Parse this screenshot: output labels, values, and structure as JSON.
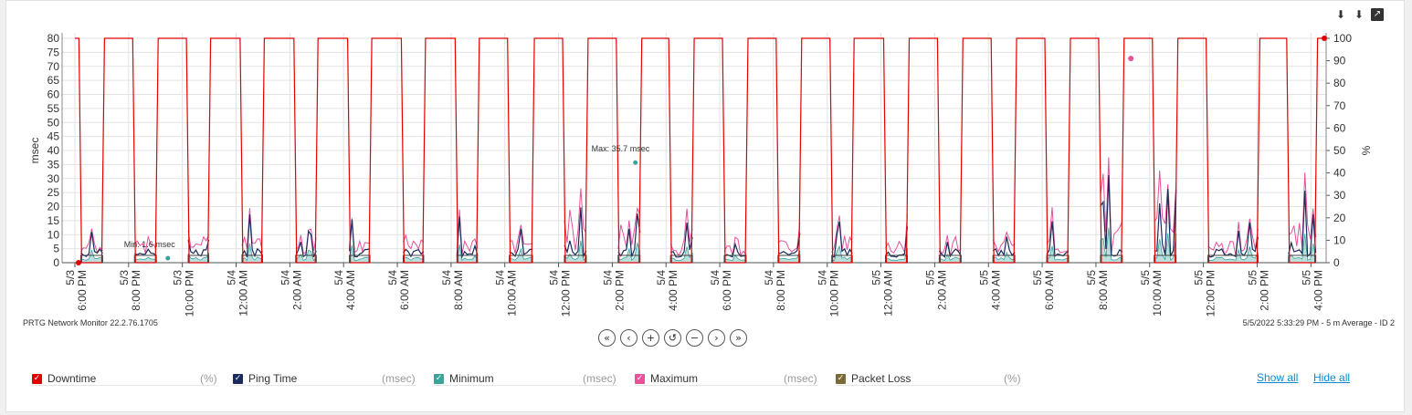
{
  "toolbar": {
    "icons": [
      "download-icon",
      "download-alt-icon",
      "open-external-icon"
    ],
    "icon_glyphs": [
      "⬇",
      "⬇",
      "↗"
    ]
  },
  "chart_data": {
    "type": "line",
    "ylabel_left": "msec",
    "ylabel_right": "%",
    "ylim_left": [
      0,
      80
    ],
    "ylim_right": [
      0,
      100
    ],
    "yticks_left": [
      0,
      5,
      10,
      15,
      20,
      25,
      30,
      35,
      40,
      45,
      50,
      55,
      60,
      65,
      70,
      75,
      80
    ],
    "yticks_right": [
      0,
      10,
      20,
      30,
      40,
      50,
      60,
      70,
      80,
      90,
      100
    ],
    "xticks": [
      [
        "5/3",
        "6:00 PM"
      ],
      [
        "5/3",
        "8:00 PM"
      ],
      [
        "5/3",
        "10:00 PM"
      ],
      [
        "5/4",
        "12:00 AM"
      ],
      [
        "5/4",
        "2:00 AM"
      ],
      [
        "5/4",
        "4:00 AM"
      ],
      [
        "5/4",
        "6:00 AM"
      ],
      [
        "5/4",
        "8:00 AM"
      ],
      [
        "5/4",
        "10:00 AM"
      ],
      [
        "5/4",
        "12:00 PM"
      ],
      [
        "5/4",
        "2:00 PM"
      ],
      [
        "5/4",
        "4:00 PM"
      ],
      [
        "5/4",
        "6:00 PM"
      ],
      [
        "5/4",
        "8:00 PM"
      ],
      [
        "5/4",
        "10:00 PM"
      ],
      [
        "5/5",
        "12:00 AM"
      ],
      [
        "5/5",
        "2:00 AM"
      ],
      [
        "5/5",
        "4:00 AM"
      ],
      [
        "5/5",
        "6:00 AM"
      ],
      [
        "5/5",
        "8:00 AM"
      ],
      [
        "5/5",
        "10:00 AM"
      ],
      [
        "5/5",
        "12:00 PM"
      ],
      [
        "5/5",
        "2:00 PM"
      ],
      [
        "5/5",
        "4:00 PM"
      ]
    ],
    "x_hours": [
      0,
      46.5
    ],
    "downtime_series": {
      "name": "Downtime",
      "color": "#e00000",
      "up_intervals_hours": [
        [
          0.15,
          1.1
        ],
        [
          2.15,
          3.1
        ],
        [
          4.15,
          5.05
        ],
        [
          6.15,
          7.05
        ],
        [
          8.15,
          9.05
        ],
        [
          10.15,
          11.05
        ],
        [
          12.15,
          13.05
        ],
        [
          14.15,
          15.05
        ],
        [
          16.1,
          17.1
        ],
        [
          18.15,
          19.1
        ],
        [
          20.15,
          21.1
        ],
        [
          22.1,
          23.05
        ],
        [
          24.1,
          25.05
        ],
        [
          26.1,
          27.05
        ],
        [
          28.1,
          29.0
        ],
        [
          30.1,
          31.05
        ],
        [
          32.1,
          33.05
        ],
        [
          34.1,
          35.05
        ],
        [
          36.1,
          37.05
        ],
        [
          38.1,
          39.05
        ],
        [
          40.1,
          41.05
        ],
        [
          42.1,
          44.1
        ],
        [
          45.1,
          46.25
        ]
      ],
      "spike_hours": [
        39.3
      ],
      "spike_value_pct": 91
    },
    "annotations": [
      {
        "text": "Min: 1.6 msec",
        "x_hours": 2.1,
        "y_msec": 1.6
      },
      {
        "text": "Max: 35.7 msec",
        "x_hours": 19.5,
        "y_msec": 35.7
      }
    ],
    "series_colors": {
      "Downtime": "#e00000",
      "Ping Time": "#1b2a5c",
      "Minimum": "#3aa39a",
      "Maximum": "#e8509a",
      "Packet Loss": "#7a6a3a"
    }
  },
  "footer": {
    "left": "PRTG Network Monitor 22.2.76.1705",
    "right": "5/5/2022 5:33:29 PM - 5 m Average - ID 2"
  },
  "nav": {
    "buttons": [
      {
        "name": "first-button",
        "glyph": "«"
      },
      {
        "name": "previous-button",
        "glyph": "‹"
      },
      {
        "name": "zoom-in-button",
        "glyph": "+"
      },
      {
        "name": "reset-button",
        "glyph": "↺"
      },
      {
        "name": "zoom-out-button",
        "glyph": "−"
      },
      {
        "name": "next-button",
        "glyph": "›"
      },
      {
        "name": "last-button",
        "glyph": "»"
      }
    ]
  },
  "legend": {
    "items": [
      {
        "label": "Downtime",
        "unit": "(%)",
        "color": "#e00000"
      },
      {
        "label": "Ping Time",
        "unit": "(msec)",
        "color": "#1b2a5c"
      },
      {
        "label": "Minimum",
        "unit": "(msec)",
        "color": "#3aa39a"
      },
      {
        "label": "Maximum",
        "unit": "(msec)",
        "color": "#e8509a"
      },
      {
        "label": "Packet Loss",
        "unit": "(%)",
        "color": "#7a6a3a"
      }
    ],
    "show_all": "Show all",
    "hide_all": "Hide all"
  }
}
